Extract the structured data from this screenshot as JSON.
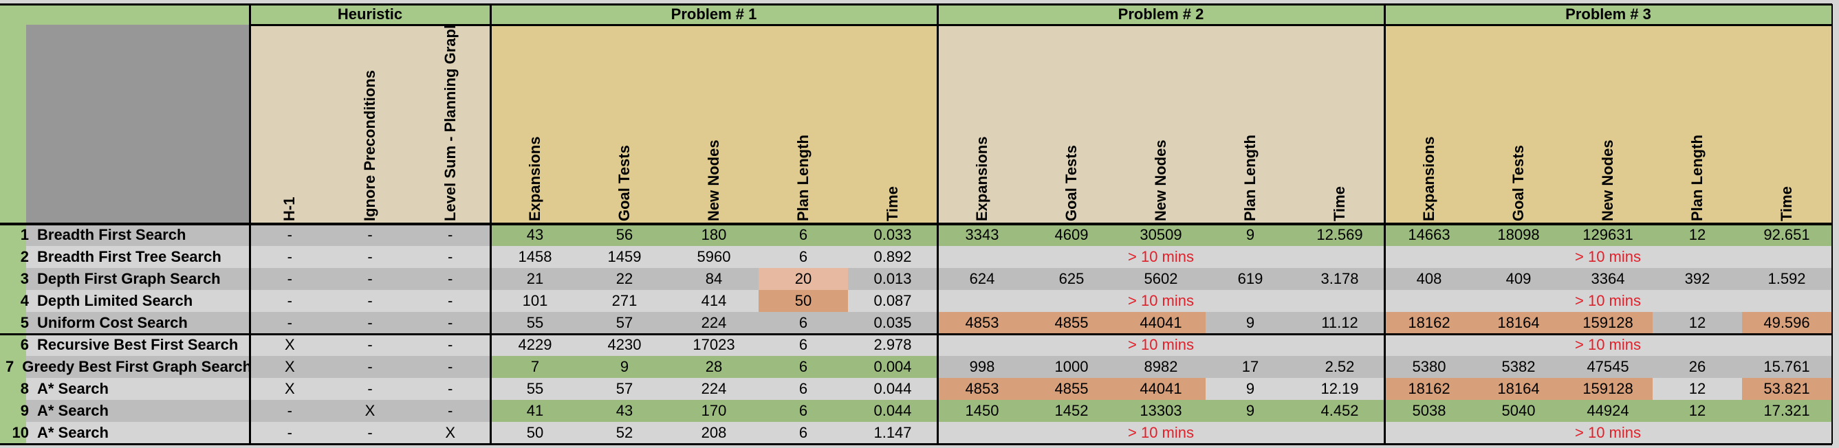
{
  "header": {
    "heuristic": "Heuristic",
    "problems": [
      "Problem # 1",
      "Problem # 2",
      "Problem # 3"
    ],
    "heuristic_columns": [
      "H-1",
      "Ignore Preconditions",
      "Level Sum - Planning Graph"
    ],
    "metric_columns": [
      "Expansions",
      "Goal Tests",
      "New Nodes",
      "Plan Length",
      "Time"
    ]
  },
  "colors": {
    "green": "#9bbb7f",
    "orange": "#d8a07a",
    "light_orange": "#e6b9a0",
    "tan": "#dfcb90",
    "beige": "#ddd2b7",
    "gray_corner": "#979797",
    "row_dark": "#bdbdbd",
    "row_light": "#d5d5d5",
    "header_green": "#a6c98a",
    "red_text": "#e0202a"
  },
  "timeout_label": "> 10 mins",
  "rows": [
    {
      "num": "1",
      "name": "Breadth First Search",
      "h": [
        "-",
        "-",
        "-"
      ],
      "p1": [
        "43",
        "56",
        "180",
        "6",
        "0.033"
      ],
      "p1c": [
        "green",
        "green",
        "green",
        "green",
        "green"
      ],
      "p2": [
        "3343",
        "4609",
        "30509",
        "9",
        "12.569"
      ],
      "p2c": [
        "green",
        "green",
        "green",
        "green",
        "green"
      ],
      "p2t": false,
      "p3": [
        "14663",
        "18098",
        "129631",
        "12",
        "92.651"
      ],
      "p3c": [
        "green",
        "green",
        "green",
        "green",
        "green"
      ],
      "p3t": false
    },
    {
      "num": "2",
      "name": "Breadth First Tree Search",
      "h": [
        "-",
        "-",
        "-"
      ],
      "p1": [
        "1458",
        "1459",
        "5960",
        "6",
        "0.892"
      ],
      "p1c": [
        "",
        "",
        "",
        "",
        ""
      ],
      "p2": [],
      "p2c": [],
      "p2t": true,
      "p3": [],
      "p3c": [],
      "p3t": true
    },
    {
      "num": "3",
      "name": "Depth First Graph Search",
      "h": [
        "-",
        "-",
        "-"
      ],
      "p1": [
        "21",
        "22",
        "84",
        "20",
        "0.013"
      ],
      "p1c": [
        "",
        "",
        "",
        "light_orange",
        ""
      ],
      "p2": [
        "624",
        "625",
        "5602",
        "619",
        "3.178"
      ],
      "p2c": [
        "",
        "",
        "",
        "",
        ""
      ],
      "p2t": false,
      "p3": [
        "408",
        "409",
        "3364",
        "392",
        "1.592"
      ],
      "p3c": [
        "",
        "",
        "",
        "",
        ""
      ],
      "p3t": false
    },
    {
      "num": "4",
      "name": "Depth Limited Search",
      "h": [
        "-",
        "-",
        "-"
      ],
      "p1": [
        "101",
        "271",
        "414",
        "50",
        "0.087"
      ],
      "p1c": [
        "",
        "",
        "",
        "orange",
        ""
      ],
      "p2": [],
      "p2c": [],
      "p2t": true,
      "p3": [],
      "p3c": [],
      "p3t": true
    },
    {
      "num": "5",
      "name": "Uniform Cost Search",
      "h": [
        "-",
        "-",
        "-"
      ],
      "p1": [
        "55",
        "57",
        "224",
        "6",
        "0.035"
      ],
      "p1c": [
        "",
        "",
        "",
        "",
        ""
      ],
      "p2": [
        "4853",
        "4855",
        "44041",
        "9",
        "11.12"
      ],
      "p2c": [
        "orange",
        "orange",
        "orange",
        "",
        ""
      ],
      "p2t": false,
      "p3": [
        "18162",
        "18164",
        "159128",
        "12",
        "49.596"
      ],
      "p3c": [
        "orange",
        "orange",
        "orange",
        "",
        "orange"
      ],
      "p3t": false
    },
    {
      "num": "6",
      "name": "Recursive Best First Search",
      "h": [
        "X",
        "-",
        "-"
      ],
      "p1": [
        "4229",
        "4230",
        "17023",
        "6",
        "2.978"
      ],
      "p1c": [
        "",
        "",
        "",
        "",
        ""
      ],
      "p2": [],
      "p2c": [],
      "p2t": true,
      "p3": [],
      "p3c": [],
      "p3t": true
    },
    {
      "num": "7",
      "name": "Greedy Best First Graph Search",
      "h": [
        "X",
        "-",
        "-"
      ],
      "p1": [
        "7",
        "9",
        "28",
        "6",
        "0.004"
      ],
      "p1c": [
        "green",
        "green",
        "green",
        "green",
        "green"
      ],
      "p2": [
        "998",
        "1000",
        "8982",
        "17",
        "2.52"
      ],
      "p2c": [
        "",
        "",
        "",
        "",
        ""
      ],
      "p2t": false,
      "p3": [
        "5380",
        "5382",
        "47545",
        "26",
        "15.761"
      ],
      "p3c": [
        "",
        "",
        "",
        "",
        ""
      ],
      "p3t": false
    },
    {
      "num": "8",
      "name": "A* Search",
      "h": [
        "X",
        "-",
        "-"
      ],
      "p1": [
        "55",
        "57",
        "224",
        "6",
        "0.044"
      ],
      "p1c": [
        "",
        "",
        "",
        "",
        ""
      ],
      "p2": [
        "4853",
        "4855",
        "44041",
        "9",
        "12.19"
      ],
      "p2c": [
        "orange",
        "orange",
        "orange",
        "",
        ""
      ],
      "p2t": false,
      "p3": [
        "18162",
        "18164",
        "159128",
        "12",
        "53.821"
      ],
      "p3c": [
        "orange",
        "orange",
        "orange",
        "",
        "orange"
      ],
      "p3t": false
    },
    {
      "num": "9",
      "name": "A* Search",
      "h": [
        "-",
        "X",
        "-"
      ],
      "p1": [
        "41",
        "43",
        "170",
        "6",
        "0.044"
      ],
      "p1c": [
        "green",
        "green",
        "green",
        "green",
        "green"
      ],
      "p2": [
        "1450",
        "1452",
        "13303",
        "9",
        "4.452"
      ],
      "p2c": [
        "green",
        "green",
        "green",
        "green",
        "green"
      ],
      "p2t": false,
      "p3": [
        "5038",
        "5040",
        "44924",
        "12",
        "17.321"
      ],
      "p3c": [
        "green",
        "green",
        "green",
        "green",
        "green"
      ],
      "p3t": false
    },
    {
      "num": "10",
      "name": "A* Search",
      "h": [
        "-",
        "-",
        "X"
      ],
      "p1": [
        "50",
        "52",
        "208",
        "6",
        "1.147"
      ],
      "p1c": [
        "",
        "",
        "",
        "",
        ""
      ],
      "p2": [],
      "p2c": [],
      "p2t": true,
      "p3": [],
      "p3c": [],
      "p3t": true
    }
  ]
}
